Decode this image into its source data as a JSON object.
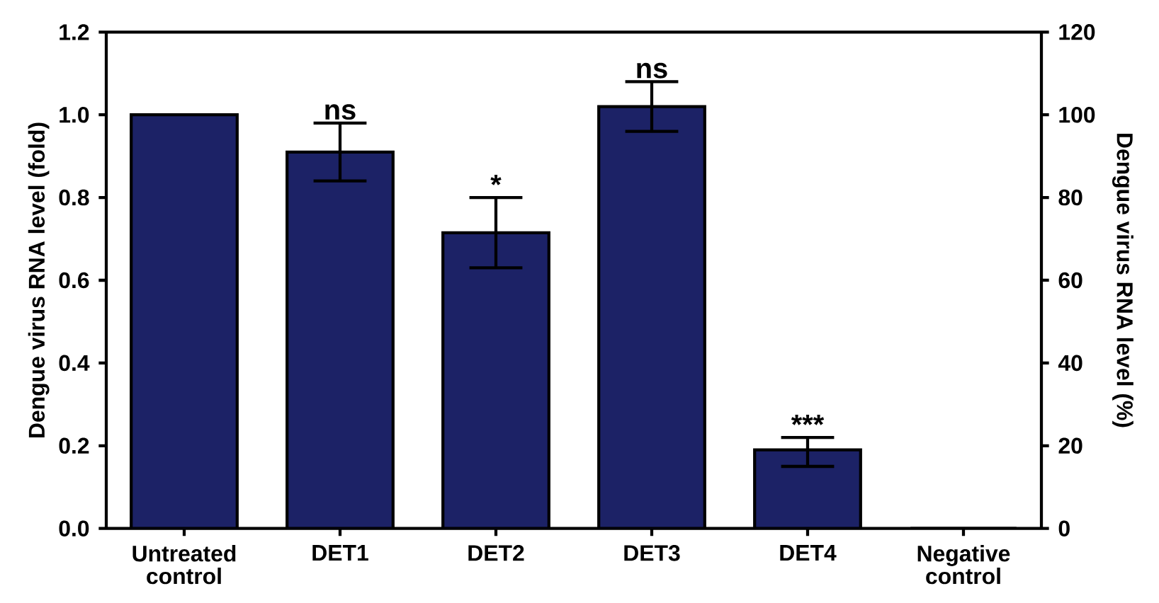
{
  "chart_data": {
    "type": "bar",
    "categories": [
      "Untreated control",
      "DET1",
      "DET2",
      "DET3",
      "DET4",
      "Negative control"
    ],
    "values": [
      1.0,
      0.91,
      0.715,
      1.02,
      0.19,
      0
    ],
    "errors": [
      null,
      [
        0.84,
        0.98
      ],
      [
        0.63,
        0.8
      ],
      [
        0.96,
        1.08
      ],
      [
        0.15,
        0.22
      ],
      null
    ],
    "color": "#1c2266",
    "ylabel": "Dengue virus RNA level (fold)",
    "y2label": "Dengue virus RNA level (%)",
    "ylim": [
      0,
      1.2
    ],
    "yticks": [
      {
        "value": 0,
        "label": "0.0"
      },
      {
        "value": 0.2,
        "label": "0.2"
      },
      {
        "value": 0.4,
        "label": "0.4"
      },
      {
        "value": 0.6,
        "label": "0.6"
      },
      {
        "value": 0.8,
        "label": "0.8"
      },
      {
        "value": 1.0,
        "label": "1.0"
      },
      {
        "value": 1.2,
        "label": "1.2"
      }
    ],
    "y2lim": [
      0,
      120
    ],
    "y2ticks": [
      0,
      20,
      40,
      60,
      80,
      100,
      120
    ],
    "annotations": [
      {
        "text": "ns",
        "x": "DET1",
        "y": 0.98
      },
      {
        "text": "*",
        "x": "DET2",
        "y": 0.8
      },
      {
        "text": "ns",
        "x": "DET3",
        "y": 1.08
      },
      {
        "text": "***",
        "x": "DET4",
        "y": 0.22
      }
    ],
    "grid": false
  }
}
